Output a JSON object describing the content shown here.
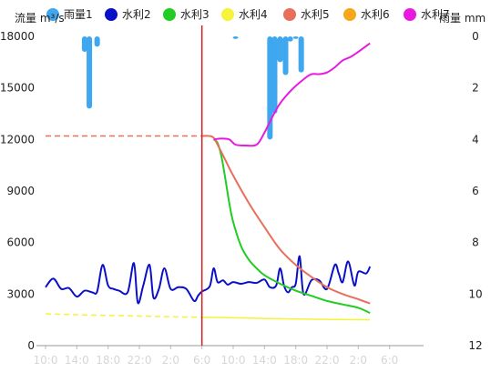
{
  "chart_data": {
    "type": "line",
    "ylabel_left": "流量 m³/s",
    "ylabel_right": "雨量 mm",
    "yleft_ticks": [
      0,
      3000,
      6000,
      9000,
      12000,
      15000,
      18000
    ],
    "yleft_lim": [
      0,
      18000
    ],
    "yright_ticks": [
      0,
      2,
      4,
      6,
      8,
      10,
      12
    ],
    "yright_lim": [
      0,
      12
    ],
    "x_tick_labels": [
      "10:0",
      "14:0",
      "18:0",
      "22:0",
      "2:0",
      "6:0",
      "10:0",
      "14:0",
      "18:0",
      "22:0",
      "2:0",
      "6:0"
    ],
    "x_lim": [
      0,
      48
    ],
    "x_unit": "hours from 10:00",
    "current_time_marker": 20,
    "grid": false,
    "legend_position": "top",
    "colors": {
      "雨量1": "#3fa7f0",
      "水利2": "#0a10c8",
      "水利3": "#22cc22",
      "水利4": "#f7f23a",
      "水利5": "#e8705a",
      "水利6": "#f9a61a",
      "水利7": "#e81ae0",
      "marker": "#d42020"
    },
    "series": [
      {
        "name": "雨量1",
        "kind": "rain_bars",
        "points": [
          [
            5,
            0.6
          ],
          [
            5.6,
            2.8
          ],
          [
            6.6,
            0.4
          ],
          [
            24.3,
            0.1
          ],
          [
            28.7,
            4.0
          ],
          [
            29.3,
            3.0
          ],
          [
            30.0,
            1.0
          ],
          [
            30.7,
            1.5
          ],
          [
            31.3,
            0.2
          ],
          [
            32.0,
            0.1
          ],
          [
            32.7,
            1.4
          ]
        ]
      },
      {
        "name": "水利2",
        "kind": "line",
        "points": [
          [
            0,
            3400
          ],
          [
            1,
            3900
          ],
          [
            2,
            3300
          ],
          [
            3,
            3350
          ],
          [
            4,
            2850
          ],
          [
            5,
            3200
          ],
          [
            6,
            3100
          ],
          [
            6.6,
            3150
          ],
          [
            7.3,
            4700
          ],
          [
            8,
            3500
          ],
          [
            8.7,
            3300
          ],
          [
            9.4,
            3200
          ],
          [
            10.5,
            3100
          ],
          [
            11.3,
            4800
          ],
          [
            11.8,
            2500
          ],
          [
            12.5,
            3500
          ],
          [
            13.3,
            4700
          ],
          [
            13.8,
            2800
          ],
          [
            14.5,
            3300
          ],
          [
            15.2,
            4500
          ],
          [
            16,
            3300
          ],
          [
            17,
            3400
          ],
          [
            18,
            3300
          ],
          [
            19,
            2600
          ],
          [
            19.5,
            2900
          ],
          [
            20,
            3150
          ],
          [
            21,
            3450
          ],
          [
            21.5,
            4500
          ],
          [
            22,
            3700
          ],
          [
            22.7,
            3800
          ],
          [
            23.3,
            3550
          ],
          [
            24,
            3700
          ],
          [
            25,
            3600
          ],
          [
            26,
            3700
          ],
          [
            27,
            3650
          ],
          [
            28,
            3850
          ],
          [
            28.7,
            3400
          ],
          [
            29.5,
            3500
          ],
          [
            30,
            4500
          ],
          [
            30.5,
            3500
          ],
          [
            31,
            3100
          ],
          [
            31.5,
            3400
          ],
          [
            32,
            3600
          ],
          [
            32.5,
            5200
          ],
          [
            33,
            3000
          ],
          [
            34,
            3800
          ],
          [
            35,
            3800
          ],
          [
            36,
            3300
          ],
          [
            37,
            4700
          ],
          [
            37.5,
            4200
          ],
          [
            38,
            3700
          ],
          [
            38.7,
            4900
          ],
          [
            39.5,
            3500
          ],
          [
            40,
            4300
          ],
          [
            41,
            4200
          ],
          [
            41.5,
            4600
          ]
        ]
      },
      {
        "name": "水利3",
        "kind": "line",
        "points": [
          [
            21.5,
            12000
          ],
          [
            22,
            11800
          ],
          [
            22.5,
            11000
          ],
          [
            23,
            9700
          ],
          [
            23.5,
            8300
          ],
          [
            24,
            7200
          ],
          [
            25,
            5800
          ],
          [
            26,
            5000
          ],
          [
            27,
            4500
          ],
          [
            28,
            4100
          ],
          [
            30,
            3600
          ],
          [
            32,
            3200
          ],
          [
            34,
            2900
          ],
          [
            36,
            2600
          ],
          [
            38,
            2400
          ],
          [
            40,
            2200
          ],
          [
            41.5,
            1900
          ]
        ]
      },
      {
        "name": "水利4",
        "kind": "line",
        "points": [
          [
            0,
            1850
          ],
          [
            4,
            1800
          ],
          [
            8,
            1760
          ],
          [
            12,
            1720
          ],
          [
            16,
            1680
          ],
          [
            20,
            1650
          ],
          [
            24,
            1620
          ],
          [
            28,
            1580
          ],
          [
            32,
            1550
          ],
          [
            36,
            1530
          ],
          [
            41.5,
            1500
          ]
        ]
      },
      {
        "name": "水利5",
        "kind": "dashed_then_line",
        "points": [
          [
            0,
            12200
          ],
          [
            4,
            12200
          ],
          [
            8,
            12200
          ],
          [
            12,
            12200
          ],
          [
            16,
            12200
          ],
          [
            20,
            12200
          ],
          [
            21,
            12200
          ],
          [
            21.5,
            12100
          ],
          [
            22,
            11700
          ],
          [
            23,
            10800
          ],
          [
            24,
            9900
          ],
          [
            26,
            8300
          ],
          [
            28,
            6900
          ],
          [
            30,
            5600
          ],
          [
            32,
            4700
          ],
          [
            34,
            4000
          ],
          [
            36,
            3400
          ],
          [
            38,
            3000
          ],
          [
            40,
            2700
          ],
          [
            41.5,
            2450
          ]
        ]
      },
      {
        "name": "水利6",
        "kind": "line",
        "points": []
      },
      {
        "name": "水利7",
        "kind": "line",
        "points": [
          [
            21.5,
            12000
          ],
          [
            22.5,
            12050
          ],
          [
            23.5,
            12000
          ],
          [
            24.3,
            11700
          ],
          [
            25.5,
            11650
          ],
          [
            27,
            11700
          ],
          [
            28,
            12400
          ],
          [
            29,
            13300
          ],
          [
            30,
            14100
          ],
          [
            31.5,
            14900
          ],
          [
            33,
            15500
          ],
          [
            34,
            15800
          ],
          [
            35,
            15800
          ],
          [
            36,
            15900
          ],
          [
            37,
            16200
          ],
          [
            38,
            16600
          ],
          [
            39,
            16800
          ],
          [
            40,
            17100
          ],
          [
            41.5,
            17600
          ]
        ]
      }
    ]
  }
}
